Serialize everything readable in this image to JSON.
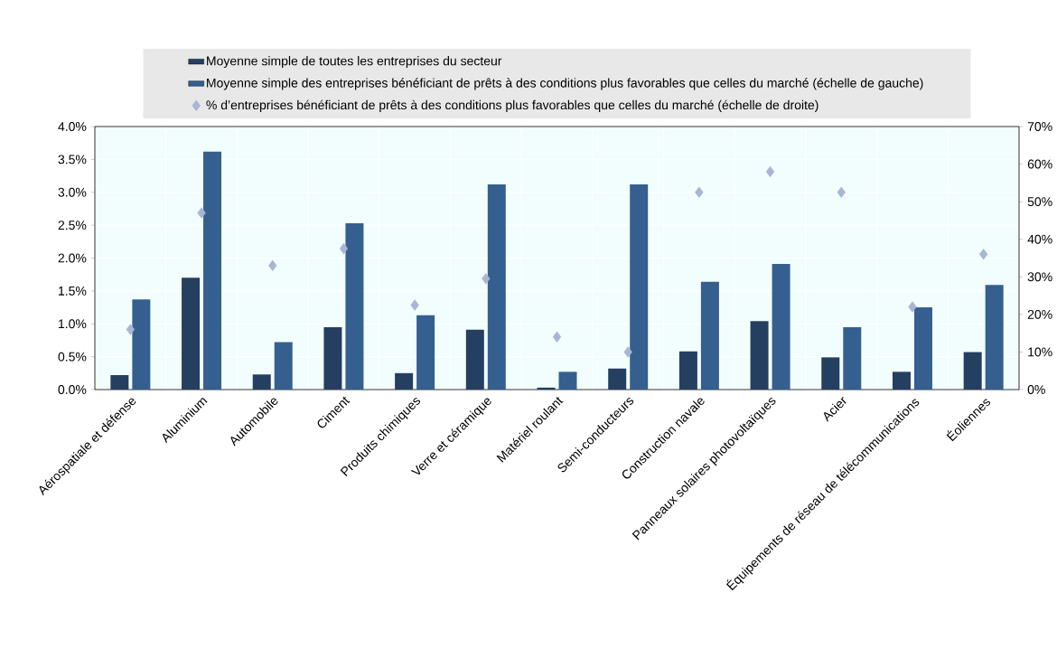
{
  "chart_data": {
    "type": "bar",
    "categories": [
      "Aérospatiale et défense",
      "Aluminium",
      "Automobile",
      "Ciment",
      "Produits chimiques",
      "Verre et céramique",
      "Matériel roulant",
      "Semi-conducteurs",
      "Construction navale",
      "Panneaux solaires photovoltaïques",
      "Acier",
      "Équipements de réseau de télécommunications",
      "Éoliennes"
    ],
    "series": [
      {
        "name": "Moyenne simple de toutes les entreprises du secteur",
        "color": "#243f60",
        "values": [
          0.22,
          1.7,
          0.23,
          0.95,
          0.25,
          0.91,
          0.03,
          0.32,
          0.58,
          1.04,
          0.49,
          0.27,
          0.57
        ]
      },
      {
        "name": "Moyenne simple des entreprises bénéficiant de prêts à des conditions plus favorables que celles du marché (échelle de gauche)",
        "color": "#355f8f",
        "values": [
          1.37,
          3.62,
          0.72,
          2.53,
          1.13,
          3.12,
          0.27,
          3.12,
          1.64,
          1.91,
          0.95,
          1.25,
          1.59
        ]
      },
      {
        "name": "% d’entreprises bénéficiant de prêts à des conditions plus favorables que celles du marché (échelle de droite)",
        "type": "scatter",
        "axis": "y2",
        "marker": "diamond",
        "color": "#a8b5d4",
        "values": [
          16,
          47,
          33,
          37.5,
          22.5,
          29.5,
          14,
          10,
          52.5,
          58,
          52.5,
          22,
          36
        ]
      }
    ],
    "ylim": [
      0,
      4
    ],
    "yticks": [
      {
        "value": 0,
        "label": "0.0%"
      },
      {
        "value": 0.5,
        "label": "0.5%"
      },
      {
        "value": 1,
        "label": "1.0%"
      },
      {
        "value": 1.5,
        "label": "1.5%"
      },
      {
        "value": 2,
        "label": "2.0%"
      },
      {
        "value": 2.5,
        "label": "2.5%"
      },
      {
        "value": 3,
        "label": "3.0%"
      },
      {
        "value": 3.5,
        "label": "3.5%"
      },
      {
        "value": 4,
        "label": "4.0%"
      }
    ],
    "y2lim": [
      0,
      70
    ],
    "y2ticks": [
      {
        "value": 0,
        "label": "0%"
      },
      {
        "value": 10,
        "label": "10%"
      },
      {
        "value": 20,
        "label": "20%"
      },
      {
        "value": 30,
        "label": "30%"
      },
      {
        "value": 40,
        "label": "40%"
      },
      {
        "value": 50,
        "label": "50%"
      },
      {
        "value": 60,
        "label": "60%"
      },
      {
        "value": 70,
        "label": "70%"
      }
    ],
    "grid": true,
    "legend": "top"
  }
}
